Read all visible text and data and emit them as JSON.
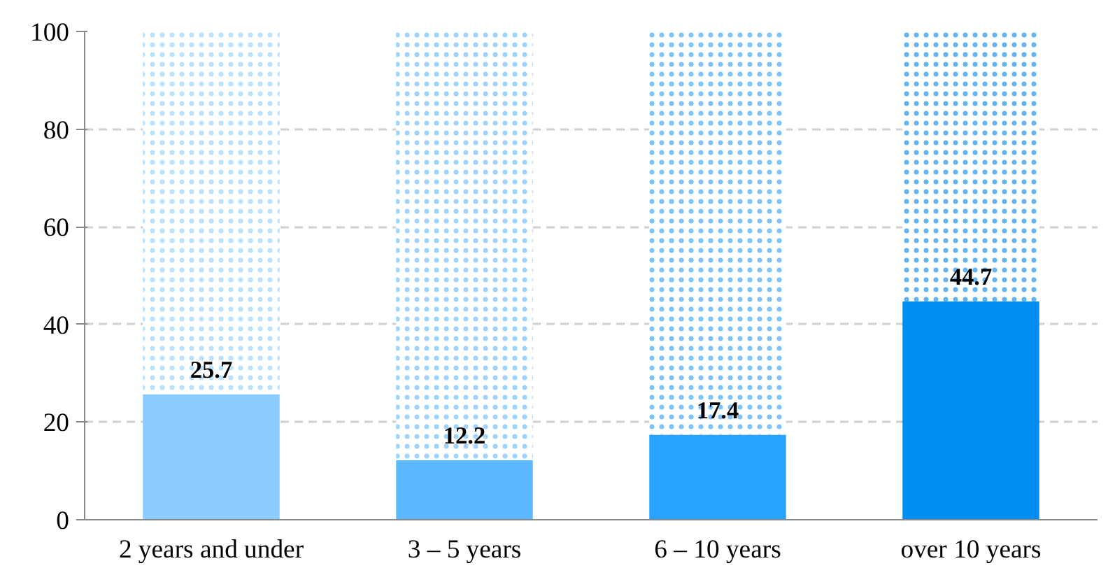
{
  "chart_data": {
    "type": "bar",
    "stacked": true,
    "categories": [
      "2 years and under",
      "3 – 5 years",
      "6 – 10 years",
      "over 10 years"
    ],
    "series": [
      {
        "colors": [
          "#8ccbff",
          "#5cb8ff",
          "#27a3ff",
          "#008cf2"
        ],
        "values": [
          25.7,
          12.2,
          17.4,
          44.7
        ],
        "value_labels": [
          "25.7",
          "12.2",
          "17.4",
          "44.7"
        ]
      },
      {
        "colors": [
          "#a9d9ff",
          "#86c8ff",
          "#5cb4ff",
          "#3aa3f5"
        ],
        "values": [
          74.3,
          87.8,
          82.6,
          55.3
        ]
      }
    ],
    "ylim": [
      0,
      100
    ],
    "yticks": [
      0,
      20,
      40,
      60,
      80,
      100
    ],
    "grid": "y"
  }
}
